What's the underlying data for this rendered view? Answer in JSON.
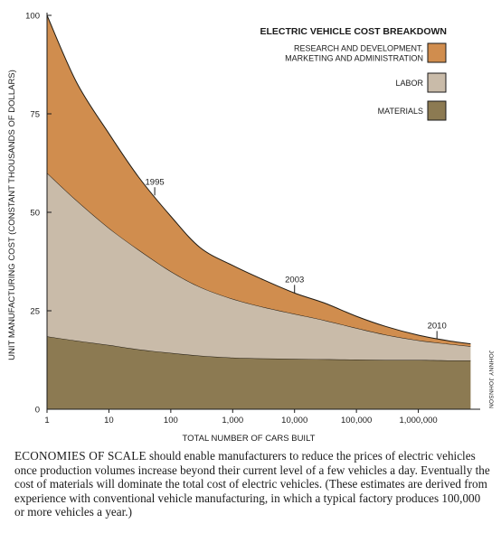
{
  "chart_data": {
    "type": "area",
    "title": "ELECTRIC VEHICLE COST BREAKDOWN",
    "xlabel": "TOTAL NUMBER OF CARS BUILT",
    "ylabel": "UNIT MANUFACTURING COST (CONSTANT THOUSANDS OF DOLLARS)",
    "x_scale": "log",
    "xlim": [
      1,
      10000000
    ],
    "ylim": [
      0,
      100
    ],
    "x_ticks": [
      1,
      10,
      100,
      1000,
      10000,
      100000,
      1000000
    ],
    "x_tick_labels": [
      "1",
      "10",
      "100",
      "1,000",
      "10,000",
      "100,000",
      "1,000,000"
    ],
    "y_ticks": [
      0,
      25,
      50,
      75,
      100
    ],
    "y_tick_labels": [
      "0",
      "25",
      "50",
      "75",
      "100"
    ],
    "stacking": "stacked",
    "grid": false,
    "legend_position": "top-right",
    "x": [
      1,
      3,
      10,
      30,
      100,
      300,
      1000,
      3000,
      10000,
      30000,
      100000,
      300000,
      1000000,
      3000000,
      7000000
    ],
    "series": [
      {
        "name": "MATERIALS",
        "color": "#8c7a52",
        "values": [
          18.5,
          17.4,
          16.3,
          15.2,
          14.3,
          13.6,
          13.1,
          12.9,
          12.8,
          12.7,
          12.6,
          12.5,
          12.5,
          12.4,
          12.4
        ]
      },
      {
        "name": "LABOR",
        "color": "#c9bba9",
        "values": [
          41.5,
          35.6,
          29.7,
          25.3,
          20.7,
          17.4,
          14.9,
          13.1,
          11.4,
          9.9,
          8.0,
          6.4,
          5.0,
          4.2,
          3.6
        ]
      },
      {
        "name": "RESEARCH AND DEVELOPMENT, MARKETING AND ADMINISTRATION",
        "color": "#d08d4e",
        "values": [
          40.0,
          30.0,
          24.0,
          18.5,
          14.0,
          10.0,
          8.5,
          7.0,
          5.3,
          4.4,
          3.0,
          2.1,
          1.3,
          0.8,
          0.6
        ]
      }
    ],
    "annotations": [
      {
        "text": "1995",
        "x": 55,
        "y": 54.3
      },
      {
        "text": "2003",
        "x": 10000,
        "y": 29.5
      },
      {
        "text": "2010",
        "x": 2000000,
        "y": 17.8
      }
    ],
    "legend_items": [
      {
        "label_lines": [
          "RESEARCH AND DEVELOPMENT,",
          "MARKETING AND ADMINISTRATION"
        ],
        "color": "#d08d4e"
      },
      {
        "label_lines": [
          "LABOR"
        ],
        "color": "#c9bba9"
      },
      {
        "label_lines": [
          "MATERIALS"
        ],
        "color": "#8c7a52"
      }
    ],
    "credit": "JOHNNY JOHNSON"
  },
  "caption": {
    "lead": "ECONOMIES OF SCALE",
    "text": " should enable manufacturers to reduce the prices of electric vehicles once production volumes increase beyond their current level of a few vehicles a day. Eventually the cost of materials will dominate the total cost of electric vehicles. (These estimates are derived from experience with conventional vehicle manufacturing, in which a typical factory produces 100,000 or more vehicles a year.)"
  }
}
